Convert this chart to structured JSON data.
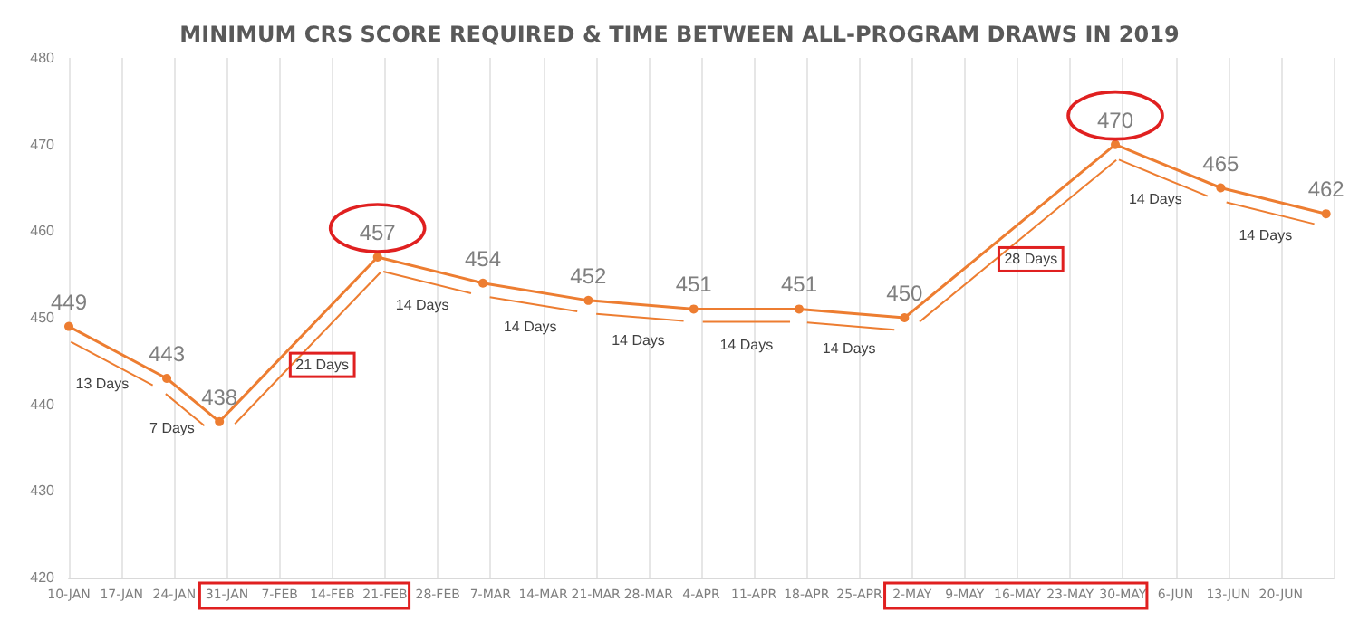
{
  "chart_data": {
    "type": "line",
    "title": "MINIMUM CRS SCORE REQUIRED & TIME BETWEEN ALL-PROGRAM DRAWS IN 2019",
    "x": [
      "2019-01-10",
      "2019-01-23",
      "2019-01-30",
      "2019-02-20",
      "2019-03-06",
      "2019-03-20",
      "2019-04-03",
      "2019-04-17",
      "2019-05-01",
      "2019-05-29",
      "2019-06-12",
      "2019-06-26"
    ],
    "series": [
      {
        "color": "#ed7d31",
        "values": [
          449,
          443,
          438,
          457,
          454,
          452,
          451,
          451,
          450,
          470,
          465,
          462
        ]
      }
    ],
    "data_labels": true,
    "marker": "circle",
    "grid": "x",
    "ylim": [
      420,
      480
    ],
    "yticks": [
      420,
      430,
      440,
      450,
      460,
      470,
      480
    ],
    "xlim": [
      "2019-01-10",
      "2019-06-27"
    ],
    "xticks": [
      {
        "value": "2019-01-10",
        "label": "10-JAN"
      },
      {
        "value": "2019-01-17",
        "label": "17-JAN"
      },
      {
        "value": "2019-01-24",
        "label": "24-JAN"
      },
      {
        "value": "2019-01-31",
        "label": "31-JAN"
      },
      {
        "value": "2019-02-07",
        "label": "7-FEB"
      },
      {
        "value": "2019-02-14",
        "label": "14-FEB"
      },
      {
        "value": "2019-02-21",
        "label": "21-FEB"
      },
      {
        "value": "2019-02-28",
        "label": "28-FEB"
      },
      {
        "value": "2019-03-07",
        "label": "7-MAR"
      },
      {
        "value": "2019-03-14",
        "label": "14-MAR"
      },
      {
        "value": "2019-03-21",
        "label": "21-MAR"
      },
      {
        "value": "2019-03-28",
        "label": "28-MAR"
      },
      {
        "value": "2019-04-04",
        "label": "4-APR"
      },
      {
        "value": "2019-04-11",
        "label": "11-APR"
      },
      {
        "value": "2019-04-18",
        "label": "18-APR"
      },
      {
        "value": "2019-04-25",
        "label": "25-APR"
      },
      {
        "value": "2019-05-02",
        "label": "2-MAY"
      },
      {
        "value": "2019-05-09",
        "label": "9-MAY"
      },
      {
        "value": "2019-05-16",
        "label": "16-MAY"
      },
      {
        "value": "2019-05-23",
        "label": "23-MAY"
      },
      {
        "value": "2019-05-30",
        "label": "30-MAY"
      },
      {
        "value": "2019-06-06",
        "label": "6-JUN"
      },
      {
        "value": "2019-06-13",
        "label": "13-JUN"
      },
      {
        "value": "2019-06-20",
        "label": "20-JUN"
      },
      {
        "value": "2019-06-27",
        "label": null
      }
    ],
    "annotations": [
      "13 Days",
      "7 Days",
      "21 Days",
      "14 Days",
      "14 Days",
      "14 Days",
      "14 Days",
      "14 Days",
      "28 Days",
      "14 Days",
      "14 Days"
    ]
  }
}
